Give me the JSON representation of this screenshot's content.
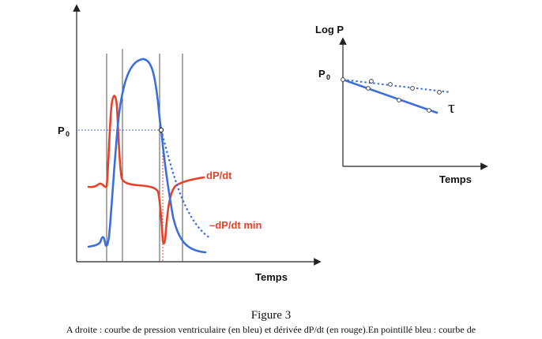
{
  "left_panel": {
    "p0_label": "P",
    "p0_sub": "0",
    "x_axis_label": "Temps",
    "dpdt_label": "dP/dt",
    "dpdt_min_label": "–dP/dt min"
  },
  "right_panel": {
    "y_axis_label": "Log P",
    "p0_label": "P",
    "p0_sub": "0",
    "x_axis_label": "Temps",
    "tau_symbol": "τ"
  },
  "caption": {
    "title": "Figure 3",
    "text": "A droite : courbe de pression ventriculaire (en bleu) et dérivée dP/dt (en rouge).En pointillé bleu : courbe de"
  },
  "colors": {
    "pressure": "#3b6fde",
    "derivative": "#e8412a",
    "axis": "#222222",
    "guide": "#555555"
  }
}
